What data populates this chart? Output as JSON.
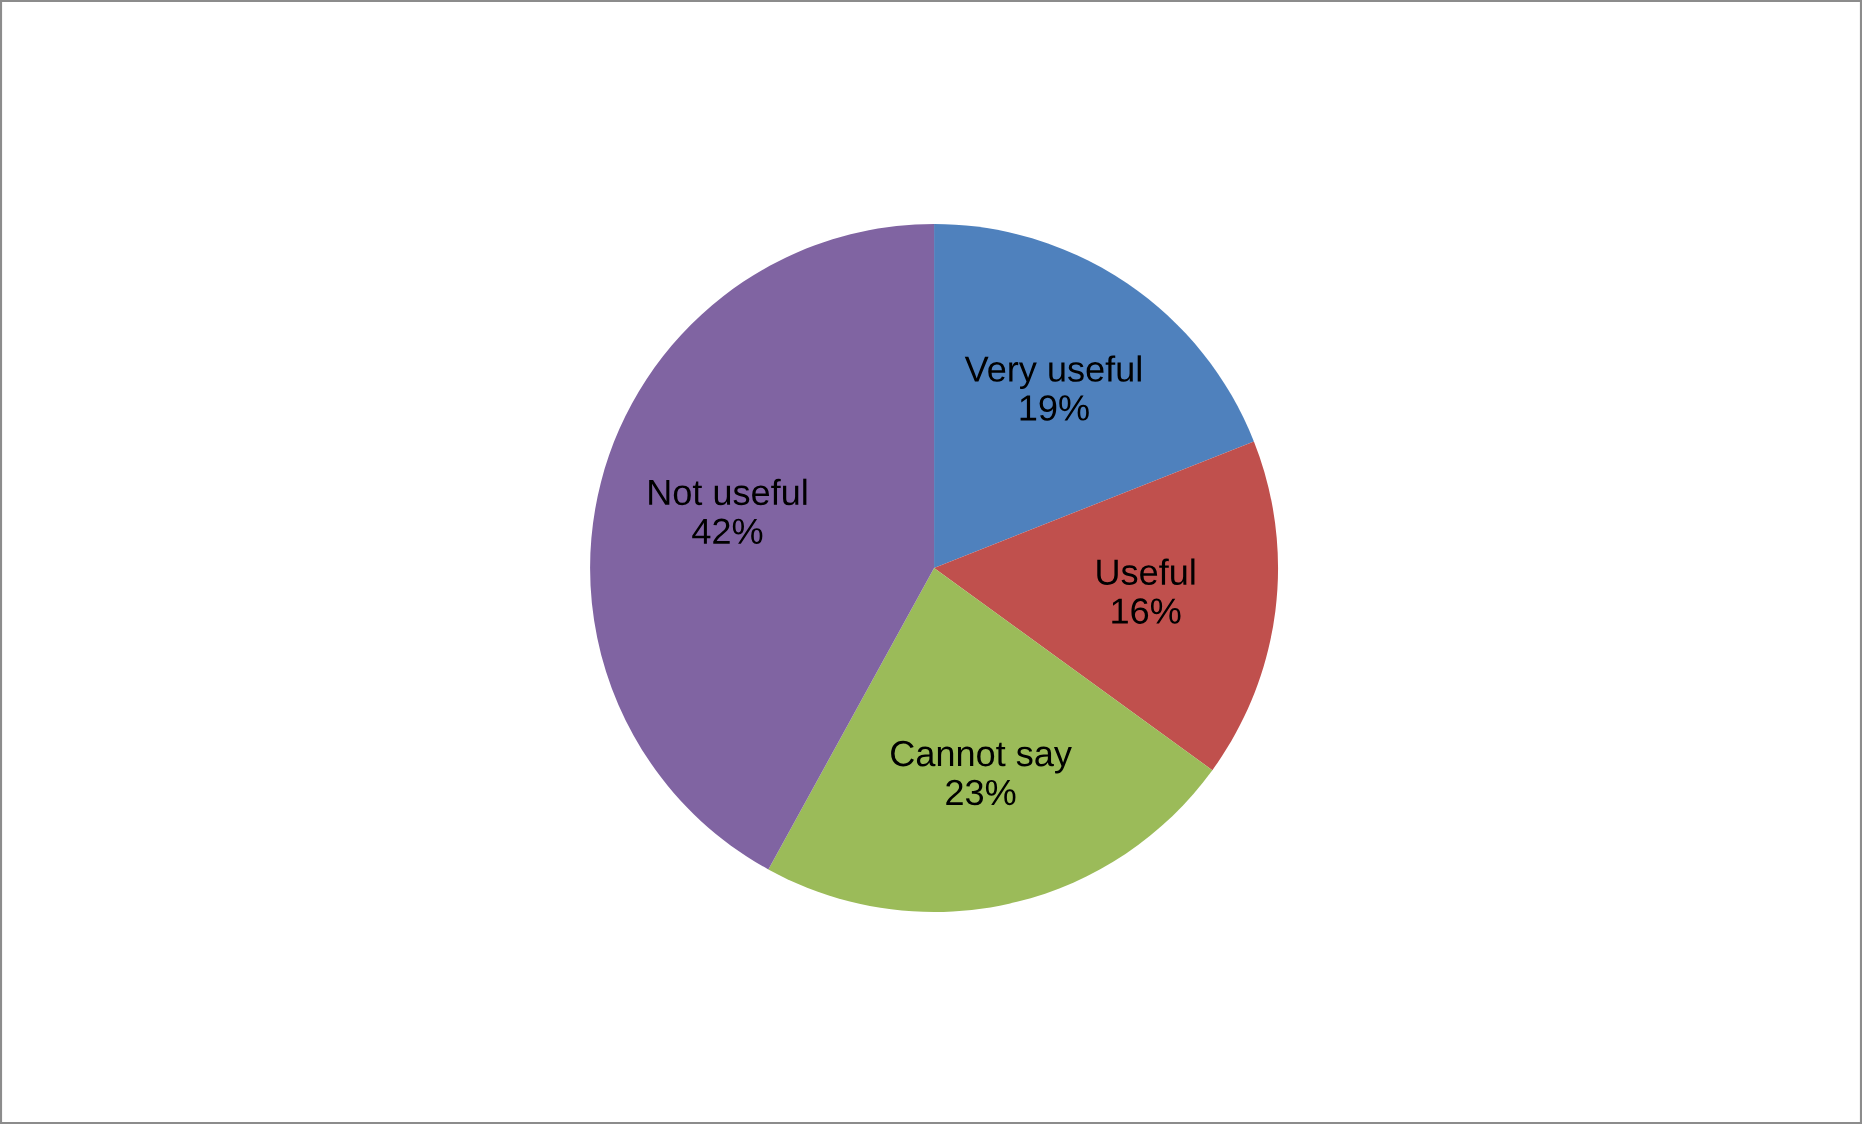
{
  "chart_data": {
    "type": "pie",
    "categories": [
      "Very useful",
      "Useful",
      "Cannot say",
      "Not useful"
    ],
    "values": [
      19,
      16,
      23,
      42
    ],
    "colors": [
      "#4f81bd",
      "#c0504d",
      "#9bbb59",
      "#8064a2"
    ],
    "value_labels": [
      "19%",
      "16%",
      "23%",
      "42%"
    ],
    "legend": false
  }
}
